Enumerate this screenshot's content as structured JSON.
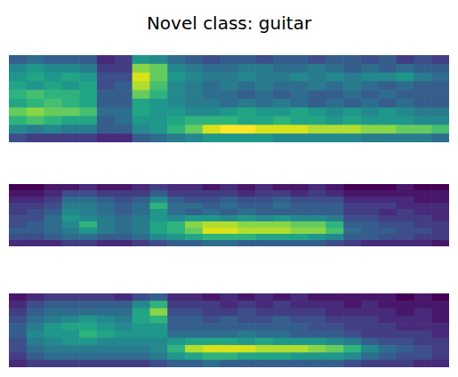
{
  "chart_data": {
    "type": "heatmap",
    "title": "Novel class: guitar",
    "tick_labels": false,
    "panels": [
      {
        "cells": [
          [
            0.3,
            0.35,
            0.3,
            0.3,
            0.3,
            0.15,
            0.2,
            0.5,
            0.45,
            0.35,
            0.3,
            0.25,
            0.3,
            0.3,
            0.25,
            0.3,
            0.3,
            0.25,
            0.3,
            0.3,
            0.25,
            0.3,
            0.2,
            0.25,
            0.2
          ],
          [
            0.45,
            0.5,
            0.45,
            0.45,
            0.4,
            0.2,
            0.2,
            0.75,
            0.7,
            0.45,
            0.4,
            0.35,
            0.35,
            0.4,
            0.4,
            0.35,
            0.35,
            0.4,
            0.35,
            0.3,
            0.35,
            0.3,
            0.35,
            0.3,
            0.3
          ],
          [
            0.5,
            0.55,
            0.5,
            0.55,
            0.5,
            0.25,
            0.25,
            0.85,
            0.7,
            0.5,
            0.45,
            0.4,
            0.4,
            0.45,
            0.4,
            0.4,
            0.45,
            0.4,
            0.45,
            0.4,
            0.45,
            0.45,
            0.5,
            0.4,
            0.35
          ],
          [
            0.55,
            0.5,
            0.55,
            0.5,
            0.55,
            0.25,
            0.3,
            0.8,
            0.65,
            0.45,
            0.4,
            0.35,
            0.4,
            0.35,
            0.4,
            0.35,
            0.35,
            0.4,
            0.35,
            0.4,
            0.35,
            0.3,
            0.35,
            0.3,
            0.3
          ],
          [
            0.6,
            0.65,
            0.6,
            0.6,
            0.55,
            0.3,
            0.3,
            0.7,
            0.6,
            0.45,
            0.4,
            0.35,
            0.35,
            0.3,
            0.35,
            0.3,
            0.35,
            0.3,
            0.3,
            0.35,
            0.3,
            0.35,
            0.3,
            0.3,
            0.3
          ],
          [
            0.55,
            0.6,
            0.65,
            0.6,
            0.55,
            0.3,
            0.3,
            0.55,
            0.5,
            0.45,
            0.4,
            0.4,
            0.35,
            0.4,
            0.35,
            0.4,
            0.35,
            0.3,
            0.35,
            0.3,
            0.35,
            0.3,
            0.35,
            0.3,
            0.3
          ],
          [
            0.7,
            0.75,
            0.7,
            0.7,
            0.65,
            0.35,
            0.35,
            0.55,
            0.5,
            0.5,
            0.45,
            0.45,
            0.5,
            0.55,
            0.5,
            0.5,
            0.55,
            0.5,
            0.45,
            0.5,
            0.45,
            0.5,
            0.45,
            0.4,
            0.4
          ],
          [
            0.6,
            0.65,
            0.6,
            0.55,
            0.55,
            0.3,
            0.35,
            0.5,
            0.5,
            0.55,
            0.6,
            0.6,
            0.6,
            0.55,
            0.55,
            0.6,
            0.55,
            0.55,
            0.5,
            0.55,
            0.5,
            0.5,
            0.5,
            0.45,
            0.45
          ],
          [
            0.45,
            0.4,
            0.45,
            0.4,
            0.4,
            0.3,
            0.3,
            0.45,
            0.5,
            0.6,
            0.7,
            0.85,
            0.9,
            0.9,
            0.85,
            0.85,
            0.85,
            0.8,
            0.8,
            0.8,
            0.75,
            0.75,
            0.7,
            0.7,
            0.65
          ],
          [
            0.25,
            0.2,
            0.2,
            0.2,
            0.2,
            0.15,
            0.15,
            0.3,
            0.35,
            0.4,
            0.45,
            0.5,
            0.5,
            0.5,
            0.5,
            0.45,
            0.45,
            0.45,
            0.45,
            0.45,
            0.4,
            0.4,
            0.4,
            0.4,
            0.35
          ]
        ]
      },
      {
        "cells": [
          [
            0.05,
            0.05,
            0.1,
            0.1,
            0.15,
            0.1,
            0.1,
            0.15,
            0.2,
            0.15,
            0.15,
            0.1,
            0.15,
            0.1,
            0.15,
            0.1,
            0.1,
            0.15,
            0.1,
            0.05,
            0.05,
            0.05,
            0.1,
            0.05,
            0.05
          ],
          [
            0.1,
            0.1,
            0.15,
            0.25,
            0.25,
            0.2,
            0.2,
            0.2,
            0.3,
            0.2,
            0.2,
            0.2,
            0.2,
            0.15,
            0.2,
            0.2,
            0.15,
            0.2,
            0.15,
            0.1,
            0.1,
            0.1,
            0.1,
            0.1,
            0.1
          ],
          [
            0.15,
            0.15,
            0.2,
            0.35,
            0.35,
            0.3,
            0.25,
            0.3,
            0.45,
            0.3,
            0.25,
            0.25,
            0.3,
            0.25,
            0.25,
            0.3,
            0.25,
            0.25,
            0.25,
            0.15,
            0.15,
            0.15,
            0.15,
            0.1,
            0.1
          ],
          [
            0.2,
            0.2,
            0.25,
            0.4,
            0.4,
            0.35,
            0.3,
            0.35,
            0.6,
            0.35,
            0.35,
            0.3,
            0.35,
            0.3,
            0.3,
            0.35,
            0.3,
            0.3,
            0.3,
            0.2,
            0.2,
            0.2,
            0.15,
            0.15,
            0.15
          ],
          [
            0.2,
            0.25,
            0.3,
            0.45,
            0.4,
            0.35,
            0.3,
            0.35,
            0.5,
            0.35,
            0.3,
            0.35,
            0.3,
            0.35,
            0.3,
            0.3,
            0.3,
            0.3,
            0.3,
            0.2,
            0.2,
            0.15,
            0.2,
            0.15,
            0.15
          ],
          [
            0.25,
            0.25,
            0.35,
            0.5,
            0.45,
            0.4,
            0.35,
            0.4,
            0.5,
            0.45,
            0.5,
            0.5,
            0.45,
            0.5,
            0.45,
            0.5,
            0.45,
            0.45,
            0.4,
            0.25,
            0.25,
            0.2,
            0.2,
            0.2,
            0.15
          ],
          [
            0.25,
            0.3,
            0.35,
            0.45,
            0.6,
            0.4,
            0.35,
            0.4,
            0.55,
            0.6,
            0.75,
            0.8,
            0.8,
            0.75,
            0.75,
            0.75,
            0.7,
            0.7,
            0.6,
            0.3,
            0.3,
            0.25,
            0.25,
            0.2,
            0.2
          ],
          [
            0.3,
            0.3,
            0.35,
            0.4,
            0.5,
            0.4,
            0.35,
            0.4,
            0.55,
            0.6,
            0.7,
            0.85,
            0.85,
            0.8,
            0.8,
            0.8,
            0.75,
            0.75,
            0.65,
            0.35,
            0.3,
            0.3,
            0.25,
            0.25,
            0.2
          ],
          [
            0.25,
            0.25,
            0.3,
            0.35,
            0.35,
            0.3,
            0.3,
            0.35,
            0.45,
            0.5,
            0.55,
            0.6,
            0.6,
            0.6,
            0.55,
            0.55,
            0.55,
            0.5,
            0.45,
            0.3,
            0.3,
            0.25,
            0.25,
            0.2,
            0.2
          ],
          [
            0.15,
            0.15,
            0.15,
            0.2,
            0.2,
            0.15,
            0.15,
            0.2,
            0.25,
            0.3,
            0.3,
            0.35,
            0.35,
            0.3,
            0.3,
            0.3,
            0.3,
            0.3,
            0.25,
            0.2,
            0.15,
            0.15,
            0.15,
            0.15,
            0.1
          ]
        ]
      },
      {
        "cells": [
          [
            0.1,
            0.15,
            0.2,
            0.2,
            0.2,
            0.2,
            0.15,
            0.25,
            0.3,
            0.15,
            0.15,
            0.1,
            0.15,
            0.1,
            0.15,
            0.1,
            0.15,
            0.1,
            0.1,
            0.1,
            0.1,
            0.1,
            0.05,
            0.1,
            0.05
          ],
          [
            0.15,
            0.25,
            0.3,
            0.3,
            0.3,
            0.3,
            0.3,
            0.45,
            0.6,
            0.2,
            0.2,
            0.2,
            0.15,
            0.2,
            0.15,
            0.2,
            0.15,
            0.15,
            0.15,
            0.1,
            0.15,
            0.1,
            0.1,
            0.1,
            0.1
          ],
          [
            0.2,
            0.3,
            0.35,
            0.35,
            0.35,
            0.35,
            0.35,
            0.55,
            0.75,
            0.25,
            0.25,
            0.2,
            0.2,
            0.25,
            0.2,
            0.2,
            0.2,
            0.2,
            0.15,
            0.15,
            0.15,
            0.15,
            0.1,
            0.15,
            0.1
          ],
          [
            0.25,
            0.35,
            0.4,
            0.45,
            0.5,
            0.45,
            0.4,
            0.55,
            0.6,
            0.3,
            0.3,
            0.25,
            0.3,
            0.25,
            0.25,
            0.3,
            0.25,
            0.25,
            0.2,
            0.2,
            0.2,
            0.15,
            0.15,
            0.15,
            0.1
          ],
          [
            0.3,
            0.4,
            0.5,
            0.55,
            0.55,
            0.5,
            0.45,
            0.5,
            0.5,
            0.3,
            0.3,
            0.3,
            0.3,
            0.3,
            0.3,
            0.3,
            0.3,
            0.25,
            0.25,
            0.2,
            0.2,
            0.2,
            0.15,
            0.15,
            0.15
          ],
          [
            0.3,
            0.45,
            0.5,
            0.5,
            0.6,
            0.55,
            0.5,
            0.5,
            0.5,
            0.35,
            0.35,
            0.35,
            0.35,
            0.4,
            0.35,
            0.35,
            0.3,
            0.3,
            0.3,
            0.25,
            0.2,
            0.2,
            0.2,
            0.2,
            0.15
          ],
          [
            0.25,
            0.4,
            0.45,
            0.5,
            0.5,
            0.45,
            0.45,
            0.45,
            0.45,
            0.5,
            0.55,
            0.55,
            0.55,
            0.5,
            0.55,
            0.5,
            0.5,
            0.5,
            0.45,
            0.4,
            0.3,
            0.25,
            0.25,
            0.2,
            0.2
          ],
          [
            0.25,
            0.35,
            0.4,
            0.4,
            0.4,
            0.4,
            0.4,
            0.4,
            0.45,
            0.6,
            0.8,
            0.85,
            0.85,
            0.85,
            0.8,
            0.8,
            0.8,
            0.75,
            0.7,
            0.6,
            0.45,
            0.35,
            0.3,
            0.25,
            0.2
          ],
          [
            0.2,
            0.3,
            0.35,
            0.35,
            0.35,
            0.35,
            0.35,
            0.35,
            0.4,
            0.5,
            0.55,
            0.6,
            0.6,
            0.55,
            0.55,
            0.55,
            0.5,
            0.5,
            0.5,
            0.45,
            0.35,
            0.3,
            0.25,
            0.25,
            0.2
          ],
          [
            0.15,
            0.2,
            0.2,
            0.2,
            0.2,
            0.2,
            0.2,
            0.2,
            0.25,
            0.3,
            0.3,
            0.35,
            0.3,
            0.3,
            0.3,
            0.3,
            0.3,
            0.3,
            0.3,
            0.25,
            0.2,
            0.2,
            0.2,
            0.15,
            0.15
          ]
        ]
      }
    ]
  }
}
